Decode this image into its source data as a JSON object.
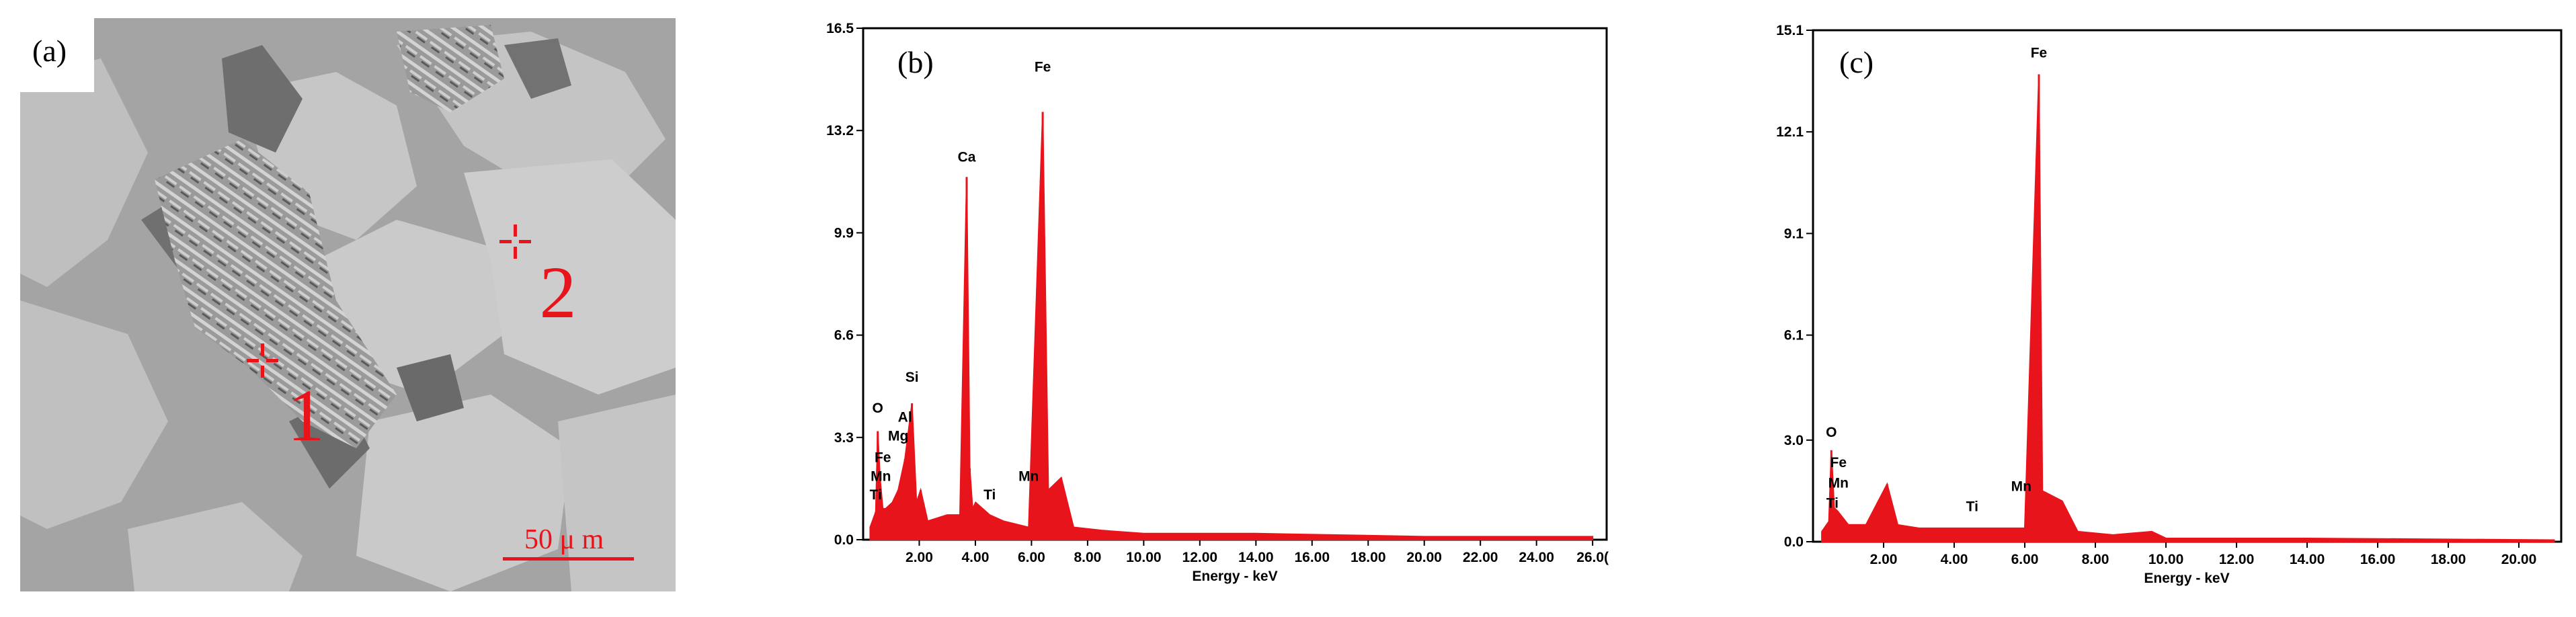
{
  "panel_a": {
    "label": "(a)",
    "markers": [
      {
        "label": "1"
      },
      {
        "label": "2"
      }
    ],
    "scale_bar": "50 μ m"
  },
  "chart_data": [
    {
      "type": "line",
      "panel_label": "(b)",
      "xlabel": "Energy - keV",
      "ylabel": "",
      "xlim": [
        0,
        26.5
      ],
      "ylim": [
        0,
        16.5
      ],
      "yticks": [
        "16.5",
        "13.2",
        "9.9",
        "6.6",
        "3.3",
        "0.0"
      ],
      "ytick_values": [
        16.5,
        13.2,
        9.9,
        6.6,
        3.3,
        0.0
      ],
      "xticks": [
        "2.00",
        "4.00",
        "6.00",
        "8.00",
        "10.00",
        "12.00",
        "14.00",
        "16.00",
        "18.00",
        "20.00",
        "22.00",
        "24.00",
        "26.0("
      ],
      "xtick_values": [
        2,
        4,
        6,
        8,
        10,
        12,
        14,
        16,
        18,
        20,
        22,
        24,
        26
      ],
      "line_color": "#e8141b",
      "series": [
        {
          "x": [
            0.25,
            0.45,
            0.52,
            0.6,
            0.7,
            0.8,
            1.04,
            1.25,
            1.49,
            1.74,
            1.9,
            2.05,
            2.3,
            3.0,
            3.45,
            3.69,
            3.8,
            3.9,
            4.01,
            4.51,
            5.0,
            5.9,
            6.4,
            6.6,
            7.06,
            7.5,
            8.5,
            10.0,
            14.0,
            20.0,
            26.0
          ],
          "y": [
            0.4,
            0.9,
            3.5,
            2.0,
            1.0,
            1.0,
            1.2,
            1.6,
            2.6,
            4.4,
            1.2,
            1.6,
            0.6,
            0.8,
            0.8,
            11.7,
            2.3,
            1.0,
            1.2,
            0.8,
            0.6,
            0.4,
            13.8,
            1.6,
            2.0,
            0.4,
            0.3,
            0.2,
            0.2,
            0.1,
            0.1
          ]
        }
      ],
      "annotations": [
        {
          "text": "Fe",
          "x": 6.4,
          "y": 15.1
        },
        {
          "text": "Ca",
          "x": 3.69,
          "y": 12.2
        },
        {
          "text": "Si",
          "x": 1.74,
          "y": 5.1
        },
        {
          "text": "O",
          "x": 0.52,
          "y": 4.1
        },
        {
          "text": "Al",
          "x": 1.49,
          "y": 3.8
        },
        {
          "text": "Mg",
          "x": 1.25,
          "y": 3.2
        },
        {
          "text": "Fe",
          "x": 0.7,
          "y": 2.5
        },
        {
          "text": "Mn",
          "x": 0.63,
          "y": 1.9
        },
        {
          "text": "Ti",
          "x": 0.45,
          "y": 1.3
        },
        {
          "text": "Ti",
          "x": 4.51,
          "y": 1.3
        },
        {
          "text": "Mn",
          "x": 5.9,
          "y": 1.9
        }
      ]
    },
    {
      "type": "line",
      "panel_label": "(c)",
      "xlabel": "Energy - keV",
      "ylabel": "",
      "xlim": [
        0,
        21.2
      ],
      "ylim": [
        0,
        15.1
      ],
      "yticks": [
        "15.1",
        "12.1",
        "9.1",
        "6.1",
        "3.0",
        "0.0"
      ],
      "ytick_values": [
        15.1,
        12.1,
        9.1,
        6.1,
        3.0,
        0.0
      ],
      "xticks": [
        "2.00",
        "4.00",
        "6.00",
        "8.00",
        "10.00",
        "12.00",
        "14.00",
        "16.00",
        "18.00",
        "20.00"
      ],
      "xtick_values": [
        2,
        4,
        6,
        8,
        10,
        12,
        14,
        16,
        18,
        20
      ],
      "line_color": "#e8141b",
      "series": [
        {
          "x": [
            0.25,
            0.45,
            0.52,
            0.6,
            0.7,
            1.0,
            1.5,
            2.1,
            2.4,
            3.0,
            4.5,
            5.5,
            6.0,
            6.4,
            6.5,
            7.06,
            7.5,
            8.5,
            9.6,
            10.0,
            14.0,
            21.0
          ],
          "y": [
            0.3,
            0.6,
            2.7,
            1.0,
            0.9,
            0.5,
            0.5,
            1.7,
            0.5,
            0.4,
            0.4,
            0.4,
            0.4,
            13.8,
            1.5,
            1.2,
            0.3,
            0.2,
            0.3,
            0.1,
            0.1,
            0.05
          ]
        }
      ],
      "annotations": [
        {
          "text": "Fe",
          "x": 6.4,
          "y": 14.3
        },
        {
          "text": "O",
          "x": 0.52,
          "y": 3.1
        },
        {
          "text": "Fe",
          "x": 0.72,
          "y": 2.2
        },
        {
          "text": "Mn",
          "x": 0.72,
          "y": 1.6
        },
        {
          "text": "Ti",
          "x": 0.55,
          "y": 1.0
        },
        {
          "text": "Ti",
          "x": 4.51,
          "y": 0.9
        },
        {
          "text": "Mn",
          "x": 5.9,
          "y": 1.5
        }
      ]
    }
  ]
}
